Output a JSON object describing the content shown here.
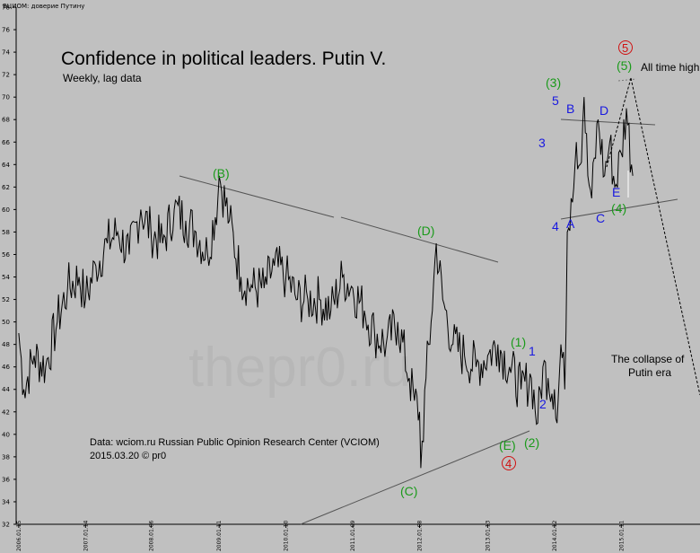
{
  "header": {
    "series_tag": "ВЦИОМ: доверие Путину"
  },
  "watermark": {
    "text": "thepr0.ru"
  },
  "chart_data": {
    "type": "line",
    "title": "Confidence in political leaders. Putin V.",
    "subtitle": "Weekly, lag data",
    "source_line1": "Data: wciom.ru Russian Public Opinion Research Center (VCIOM)",
    "source_line2": "2015.03.20 © pr0",
    "ylim": [
      32,
      78
    ],
    "yticks": [
      32,
      34,
      36,
      38,
      40,
      42,
      44,
      46,
      48,
      50,
      52,
      54,
      56,
      58,
      60,
      62,
      64,
      66,
      68,
      70,
      72,
      74,
      76,
      78
    ],
    "xlim": [
      "2006-01-01",
      "2016-03-15"
    ],
    "xticks": [
      "2006.01.15",
      "2007.01.14",
      "2008.01.06",
      "2009.01.11",
      "2010.01.10",
      "2011.01.09",
      "2012.01.08",
      "2013.01.13",
      "2014.01.12",
      "2015.01.11"
    ],
    "grid": false,
    "legend": "none",
    "line_color": "#000000",
    "anchors": [
      [
        "2006-01-15",
        49
      ],
      [
        "2006-02-12",
        44
      ],
      [
        "2006-04-09",
        47
      ],
      [
        "2006-06-11",
        46
      ],
      [
        "2006-08-13",
        50
      ],
      [
        "2006-10-08",
        53
      ],
      [
        "2006-12-10",
        54
      ],
      [
        "2007-01-14",
        52
      ],
      [
        "2007-03-11",
        55
      ],
      [
        "2007-05-13",
        57
      ],
      [
        "2007-07-08",
        58
      ],
      [
        "2007-09-09",
        56
      ],
      [
        "2007-11-11",
        60
      ],
      [
        "2008-01-06",
        58
      ],
      [
        "2008-03-09",
        57
      ],
      [
        "2008-05-11",
        60
      ],
      [
        "2008-07-13",
        59
      ],
      [
        "2008-09-07",
        58
      ],
      [
        "2008-11-09",
        56
      ],
      [
        "2009-01-04",
        61
      ],
      [
        "2009-01-11",
        63
      ],
      [
        "2009-03-08",
        59
      ],
      [
        "2009-05-10",
        54
      ],
      [
        "2009-07-12",
        53
      ],
      [
        "2009-09-13",
        53
      ],
      [
        "2009-11-08",
        55
      ],
      [
        "2010-01-10",
        54
      ],
      [
        "2010-03-14",
        52
      ],
      [
        "2010-05-09",
        52
      ],
      [
        "2010-07-11",
        52
      ],
      [
        "2010-09-12",
        51
      ],
      [
        "2010-11-14",
        54
      ],
      [
        "2011-01-09",
        53
      ],
      [
        "2011-03-13",
        51
      ],
      [
        "2011-05-08",
        49
      ],
      [
        "2011-07-10",
        48
      ],
      [
        "2011-09-11",
        50
      ],
      [
        "2011-11-13",
        45
      ],
      [
        "2011-12-11",
        43
      ],
      [
        "2012-01-08",
        42
      ],
      [
        "2012-01-15",
        37
      ],
      [
        "2012-02-12",
        45
      ],
      [
        "2012-03-11",
        50
      ],
      [
        "2012-04-08",
        57
      ],
      [
        "2012-05-13",
        52
      ],
      [
        "2012-07-08",
        48
      ],
      [
        "2012-09-09",
        47
      ],
      [
        "2012-11-11",
        46
      ],
      [
        "2013-01-13",
        47
      ],
      [
        "2013-03-10",
        48
      ],
      [
        "2013-05-12",
        46
      ],
      [
        "2013-07-14",
        44
      ],
      [
        "2013-09-08",
        45
      ],
      [
        "2013-10-13",
        41
      ],
      [
        "2013-11-10",
        46
      ],
      [
        "2013-12-08",
        45
      ],
      [
        "2014-01-12",
        44
      ],
      [
        "2014-01-26",
        41
      ],
      [
        "2014-02-16",
        48
      ],
      [
        "2014-03-09",
        44
      ],
      [
        "2014-03-23",
        58
      ],
      [
        "2014-04-13",
        61
      ],
      [
        "2014-05-11",
        66
      ],
      [
        "2014-06-01",
        64
      ],
      [
        "2014-06-22",
        70
      ],
      [
        "2014-07-13",
        63
      ],
      [
        "2014-08-03",
        61
      ],
      [
        "2014-09-07",
        68
      ],
      [
        "2014-10-12",
        63
      ],
      [
        "2014-11-09",
        66
      ],
      [
        "2014-12-07",
        62
      ],
      [
        "2015-01-11",
        65
      ],
      [
        "2015-02-08",
        69
      ],
      [
        "2015-03-08",
        64
      ],
      [
        "2015-03-15",
        63
      ]
    ]
  },
  "annotations": {
    "B_paren": "(B)",
    "D_paren": "(D)",
    "C_paren": "(C)",
    "E_paren": "(E)",
    "one_paren": "(1)",
    "two_paren": "(2)",
    "three_paren": "(3)",
    "four_paren": "(4)",
    "five_paren": "(5)",
    "red_four": "4",
    "red_five": "5",
    "one": "1",
    "two": "2",
    "three": "3",
    "four": "4",
    "five": "5",
    "A": "A",
    "B": "B",
    "C": "C",
    "D": "D",
    "E": "E",
    "all_time_high": "All time high",
    "collapse_line1": "The collapse of",
    "collapse_line2": "Putin era"
  }
}
